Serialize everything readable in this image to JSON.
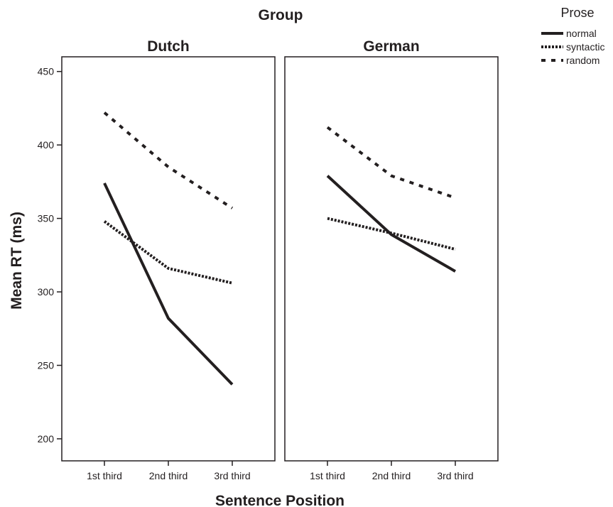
{
  "chart_data": {
    "type": "line",
    "super_title": "Group",
    "xlabel": "Sentence Position",
    "ylabel": "Mean RT (ms)",
    "ylim": [
      185,
      460
    ],
    "yticks": [
      200,
      250,
      300,
      350,
      400,
      450
    ],
    "categories": [
      "1st third",
      "2nd third",
      "3rd third"
    ],
    "grid": false,
    "legend": {
      "title": "Prose",
      "placement": "top-right",
      "entries": [
        {
          "name": "normal",
          "style": "solid"
        },
        {
          "name": "syntactic",
          "style": "dotted"
        },
        {
          "name": "random",
          "style": "dashed"
        }
      ]
    },
    "line_color": "#231f20",
    "panels": [
      {
        "title": "Dutch",
        "series": [
          {
            "name": "normal",
            "values": [
              374,
              282,
              237
            ]
          },
          {
            "name": "syntactic",
            "values": [
              348,
              316,
              306
            ]
          },
          {
            "name": "random",
            "values": [
              422,
              385,
              357
            ]
          }
        ]
      },
      {
        "title": "German",
        "series": [
          {
            "name": "normal",
            "values": [
              379,
              339,
              314
            ]
          },
          {
            "name": "syntactic",
            "values": [
              350,
              340,
              329
            ]
          },
          {
            "name": "random",
            "values": [
              412,
              379,
              364
            ]
          }
        ]
      }
    ]
  }
}
